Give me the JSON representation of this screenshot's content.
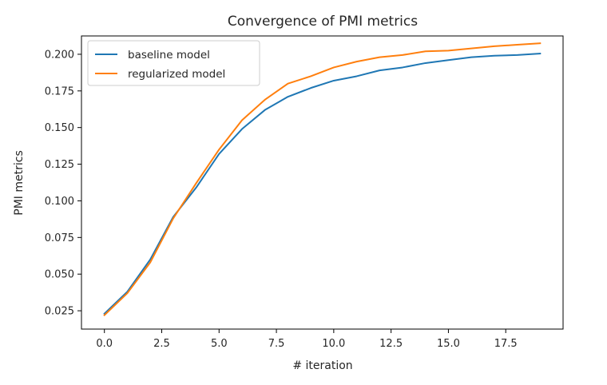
{
  "chart_data": {
    "type": "line",
    "title": "Convergence of PMI metrics",
    "xlabel": "# iteration",
    "ylabel": "PMI metrics",
    "x": [
      0,
      1,
      2,
      3,
      4,
      5,
      6,
      7,
      8,
      9,
      10,
      11,
      12,
      13,
      14,
      15,
      16,
      17,
      18,
      19
    ],
    "xlim": [
      -1.0,
      20.0
    ],
    "ylim": [
      0.0125,
      0.2125
    ],
    "xticks": [
      0.0,
      2.5,
      5.0,
      7.5,
      10.0,
      12.5,
      15.0,
      17.5
    ],
    "xtick_labels": [
      "0.0",
      "2.5",
      "5.0",
      "7.5",
      "10.0",
      "12.5",
      "15.0",
      "17.5"
    ],
    "yticks": [
      0.025,
      0.05,
      0.075,
      0.1,
      0.125,
      0.15,
      0.175,
      0.2
    ],
    "ytick_labels": [
      "0.025",
      "0.050",
      "0.075",
      "0.100",
      "0.125",
      "0.150",
      "0.175",
      "0.200"
    ],
    "grid": false,
    "legend_position": "top-left",
    "series": [
      {
        "name": "baseline model",
        "color": "#1f77b4",
        "values": [
          0.023,
          0.038,
          0.06,
          0.089,
          0.109,
          0.132,
          0.149,
          0.162,
          0.171,
          0.177,
          0.182,
          0.185,
          0.189,
          0.191,
          0.194,
          0.196,
          0.198,
          0.199,
          0.1995,
          0.2005
        ]
      },
      {
        "name": "regularized model",
        "color": "#ff7f0e",
        "values": [
          0.022,
          0.037,
          0.058,
          0.088,
          0.112,
          0.135,
          0.155,
          0.169,
          0.18,
          0.185,
          0.191,
          0.195,
          0.198,
          0.1995,
          0.202,
          0.2025,
          0.204,
          0.2055,
          0.2065,
          0.2075
        ]
      }
    ]
  }
}
